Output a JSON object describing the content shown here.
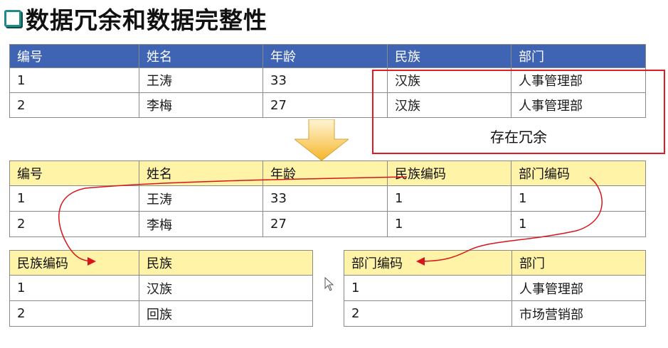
{
  "title": "数据冗余和数据完整性",
  "original_table": {
    "headers": [
      "编号",
      "姓名",
      "年龄",
      "民族",
      "部门"
    ],
    "rows": [
      [
        "1",
        "王涛",
        "33",
        "汉族",
        "人事管理部"
      ],
      [
        "2",
        "李梅",
        "27",
        "汉族",
        "人事管理部"
      ]
    ]
  },
  "redundancy_label": "存在冗余",
  "normalized_table": {
    "headers": [
      "编号",
      "姓名",
      "年龄",
      "民族编码",
      "部门编码"
    ],
    "rows": [
      [
        "1",
        "王涛",
        "33",
        "1",
        "1"
      ],
      [
        "2",
        "李梅",
        "27",
        "1",
        "1"
      ]
    ]
  },
  "ethnic_table": {
    "headers": [
      "民族编码",
      "民族"
    ],
    "rows": [
      [
        "1",
        "汉族"
      ],
      [
        "2",
        "回族"
      ]
    ]
  },
  "dept_table": {
    "headers": [
      "部门编码",
      "部门"
    ],
    "rows": [
      [
        "1",
        "人事管理部"
      ],
      [
        "2",
        "市场营销部"
      ]
    ]
  },
  "colors": {
    "header_blue": "#3f64b4",
    "header_yellow": "#fff3a8",
    "redundancy_border": "#e01b24",
    "link_line": "#d9141a",
    "arrow_fill": "#f5b52a"
  },
  "icons": [
    "checkbox-bullet-icon",
    "down-arrow-icon",
    "mouse-cursor-icon"
  ]
}
